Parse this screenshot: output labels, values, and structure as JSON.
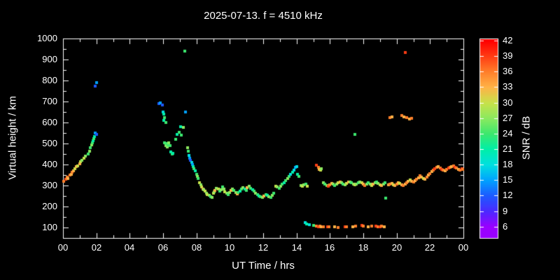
{
  "colors": {
    "background": "#000000",
    "foreground": "#ffffff"
  },
  "chart_data": {
    "type": "scatter",
    "title": "2025-07-13. f = 4510 kHz",
    "xlabel": "UT Time / hrs",
    "ylabel": "Virtual height / km",
    "xlim": [
      0,
      24
    ],
    "ylim": [
      50,
      1000
    ],
    "grid": false,
    "x_tick_hours": [
      0,
      2,
      4,
      6,
      8,
      10,
      12,
      14,
      16,
      18,
      20,
      22,
      24
    ],
    "x_ticks": [
      "00",
      "02",
      "04",
      "06",
      "08",
      "10",
      "12",
      "14",
      "16",
      "18",
      "20",
      "22",
      "00"
    ],
    "y_ticks": [
      100,
      200,
      300,
      400,
      500,
      600,
      700,
      800,
      900,
      1000
    ],
    "colorbar": {
      "label": "SNR / dB",
      "min": 6,
      "max": 42,
      "ticks": [
        6,
        9,
        12,
        15,
        18,
        21,
        24,
        27,
        30,
        33,
        36,
        39,
        42
      ],
      "color_stops": [
        [
          6,
          "#9A00FF"
        ],
        [
          9,
          "#4B29FF"
        ],
        [
          12,
          "#1E5AFF"
        ],
        [
          15,
          "#00A2FF"
        ],
        [
          18,
          "#00E0E0"
        ],
        [
          21,
          "#00EFA8"
        ],
        [
          24,
          "#3CE86E"
        ],
        [
          27,
          "#8BE95F"
        ],
        [
          30,
          "#C8E24A"
        ],
        [
          33,
          "#FFB347"
        ],
        [
          36,
          "#FF7F2A"
        ],
        [
          39,
          "#FF3C14"
        ],
        [
          42,
          "#FF0000"
        ]
      ]
    },
    "points": [
      [
        0.05,
        320,
        36
      ],
      [
        0.15,
        330,
        38
      ],
      [
        0.25,
        340,
        36
      ],
      [
        0.3,
        335,
        33
      ],
      [
        0.4,
        350,
        36
      ],
      [
        0.5,
        355,
        33
      ],
      [
        0.55,
        365,
        36
      ],
      [
        0.65,
        370,
        33
      ],
      [
        0.7,
        380,
        30
      ],
      [
        0.8,
        390,
        33
      ],
      [
        0.9,
        395,
        30
      ],
      [
        1.0,
        405,
        33
      ],
      [
        1.05,
        415,
        30
      ],
      [
        1.15,
        420,
        27
      ],
      [
        1.25,
        430,
        30
      ],
      [
        1.35,
        440,
        27
      ],
      [
        1.5,
        450,
        24
      ],
      [
        1.6,
        465,
        27
      ],
      [
        1.65,
        480,
        24
      ],
      [
        1.7,
        495,
        27
      ],
      [
        1.75,
        505,
        24
      ],
      [
        1.8,
        515,
        21
      ],
      [
        1.85,
        525,
        24
      ],
      [
        1.9,
        535,
        21
      ],
      [
        1.95,
        550,
        15
      ],
      [
        2.0,
        545,
        12
      ],
      [
        1.95,
        775,
        12
      ],
      [
        2.0,
        790,
        15
      ],
      [
        5.75,
        690,
        12
      ],
      [
        5.85,
        695,
        15
      ],
      [
        5.95,
        685,
        12
      ],
      [
        6.0,
        650,
        18
      ],
      [
        6.05,
        640,
        21
      ],
      [
        6.1,
        625,
        24
      ],
      [
        6.05,
        610,
        21
      ],
      [
        6.15,
        600,
        24
      ],
      [
        6.1,
        505,
        24
      ],
      [
        6.15,
        490,
        27
      ],
      [
        6.2,
        500,
        24
      ],
      [
        6.25,
        485,
        27
      ],
      [
        6.3,
        495,
        24
      ],
      [
        6.35,
        505,
        27
      ],
      [
        6.4,
        490,
        24
      ],
      [
        6.45,
        460,
        21
      ],
      [
        6.55,
        450,
        24
      ],
      [
        6.6,
        455,
        21
      ],
      [
        6.75,
        520,
        24
      ],
      [
        6.85,
        545,
        21
      ],
      [
        6.95,
        555,
        24
      ],
      [
        7.05,
        580,
        21
      ],
      [
        7.1,
        540,
        24
      ],
      [
        7.2,
        575,
        27
      ],
      [
        7.3,
        940,
        24
      ],
      [
        7.35,
        650,
        15
      ],
      [
        7.45,
        480,
        27
      ],
      [
        7.5,
        465,
        24
      ],
      [
        7.55,
        445,
        18
      ],
      [
        7.6,
        430,
        15
      ],
      [
        7.65,
        420,
        12
      ],
      [
        7.7,
        410,
        18
      ],
      [
        7.75,
        400,
        15
      ],
      [
        7.8,
        390,
        21
      ],
      [
        7.85,
        380,
        24
      ],
      [
        7.95,
        370,
        21
      ],
      [
        8.0,
        355,
        24
      ],
      [
        8.05,
        345,
        27
      ],
      [
        8.1,
        335,
        24
      ],
      [
        8.2,
        315,
        30
      ],
      [
        8.25,
        305,
        27
      ],
      [
        8.3,
        295,
        30
      ],
      [
        8.4,
        285,
        33
      ],
      [
        8.45,
        280,
        27
      ],
      [
        8.5,
        272,
        30
      ],
      [
        8.6,
        265,
        27
      ],
      [
        8.65,
        258,
        30
      ],
      [
        8.75,
        252,
        27
      ],
      [
        8.85,
        248,
        24
      ],
      [
        8.95,
        245,
        27
      ],
      [
        9.0,
        262,
        30
      ],
      [
        9.05,
        270,
        27
      ],
      [
        9.1,
        278,
        33
      ],
      [
        9.2,
        288,
        27
      ],
      [
        9.3,
        282,
        30
      ],
      [
        9.4,
        275,
        24
      ],
      [
        9.5,
        280,
        27
      ],
      [
        9.55,
        292,
        24
      ],
      [
        9.65,
        285,
        27
      ],
      [
        9.7,
        270,
        30
      ],
      [
        9.8,
        264,
        27
      ],
      [
        9.9,
        258,
        24
      ],
      [
        10.0,
        268,
        27
      ],
      [
        10.05,
        278,
        33
      ],
      [
        10.15,
        284,
        27
      ],
      [
        10.25,
        276,
        24
      ],
      [
        10.35,
        266,
        27
      ],
      [
        10.45,
        260,
        33
      ],
      [
        10.5,
        268,
        24
      ],
      [
        10.6,
        274,
        21
      ],
      [
        10.7,
        282,
        24
      ],
      [
        10.8,
        290,
        27
      ],
      [
        10.9,
        284,
        21
      ],
      [
        11.0,
        276,
        24
      ],
      [
        11.05,
        290,
        33
      ],
      [
        11.15,
        296,
        27
      ],
      [
        11.25,
        288,
        24
      ],
      [
        11.35,
        280,
        21
      ],
      [
        11.45,
        272,
        24
      ],
      [
        11.55,
        264,
        27
      ],
      [
        11.65,
        256,
        24
      ],
      [
        11.75,
        250,
        21
      ],
      [
        11.85,
        246,
        24
      ],
      [
        11.95,
        243,
        27
      ],
      [
        12.05,
        250,
        33
      ],
      [
        12.15,
        258,
        24
      ],
      [
        12.25,
        252,
        21
      ],
      [
        12.35,
        246,
        27
      ],
      [
        12.45,
        242,
        24
      ],
      [
        12.55,
        252,
        27
      ],
      [
        12.65,
        264,
        24
      ],
      [
        12.75,
        296,
        30
      ],
      [
        12.85,
        292,
        27
      ],
      [
        12.95,
        288,
        24
      ],
      [
        13.05,
        298,
        27
      ],
      [
        13.15,
        306,
        24
      ],
      [
        13.25,
        314,
        21
      ],
      [
        13.35,
        322,
        24
      ],
      [
        13.45,
        332,
        27
      ],
      [
        13.55,
        342,
        24
      ],
      [
        13.65,
        352,
        18
      ],
      [
        13.75,
        362,
        21
      ],
      [
        13.85,
        372,
        18
      ],
      [
        13.95,
        386,
        15
      ],
      [
        14.0,
        390,
        18
      ],
      [
        14.05,
        352,
        21
      ],
      [
        14.15,
        342,
        24
      ],
      [
        14.25,
        300,
        27
      ],
      [
        14.35,
        296,
        30
      ],
      [
        14.45,
        302,
        27
      ],
      [
        14.55,
        306,
        24
      ],
      [
        14.65,
        296,
        30
      ],
      [
        14.5,
        122,
        18
      ],
      [
        14.6,
        116,
        21
      ],
      [
        14.75,
        112,
        18
      ],
      [
        15.0,
        110,
        24
      ],
      [
        15.2,
        106,
        36
      ],
      [
        15.3,
        104,
        39
      ],
      [
        15.4,
        107,
        36
      ],
      [
        15.5,
        104,
        33
      ],
      [
        15.6,
        102,
        36
      ],
      [
        15.85,
        105,
        39
      ],
      [
        15.95,
        103,
        36
      ],
      [
        16.3,
        105,
        33
      ],
      [
        16.5,
        101,
        36
      ],
      [
        16.9,
        104,
        39
      ],
      [
        17.0,
        102,
        36
      ],
      [
        17.35,
        105,
        33
      ],
      [
        17.55,
        108,
        36
      ],
      [
        17.9,
        110,
        39
      ],
      [
        18.0,
        106,
        36
      ],
      [
        18.3,
        104,
        33
      ],
      [
        18.5,
        106,
        36
      ],
      [
        18.75,
        108,
        39
      ],
      [
        18.9,
        105,
        36
      ],
      [
        19.0,
        104,
        39
      ],
      [
        19.1,
        107,
        36
      ],
      [
        19.25,
        105,
        33
      ],
      [
        15.2,
        398,
        39
      ],
      [
        15.3,
        388,
        36
      ],
      [
        15.35,
        378,
        33
      ],
      [
        15.45,
        372,
        30
      ],
      [
        15.5,
        380,
        27
      ],
      [
        15.6,
        312,
        27
      ],
      [
        15.7,
        306,
        24
      ],
      [
        15.8,
        300,
        27
      ],
      [
        15.9,
        296,
        39
      ],
      [
        16.0,
        302,
        36
      ],
      [
        16.1,
        310,
        33
      ],
      [
        16.2,
        306,
        27
      ],
      [
        16.3,
        300,
        24
      ],
      [
        16.4,
        308,
        27
      ],
      [
        16.5,
        314,
        30
      ],
      [
        16.6,
        318,
        33
      ],
      [
        16.7,
        314,
        27
      ],
      [
        16.8,
        308,
        24
      ],
      [
        16.9,
        304,
        27
      ],
      [
        17.0,
        310,
        30
      ],
      [
        17.1,
        316,
        33
      ],
      [
        17.2,
        318,
        27
      ],
      [
        17.3,
        312,
        24
      ],
      [
        17.4,
        306,
        27
      ],
      [
        17.5,
        302,
        30
      ],
      [
        17.6,
        308,
        27
      ],
      [
        17.7,
        314,
        24
      ],
      [
        17.8,
        318,
        27
      ],
      [
        17.9,
        312,
        30
      ],
      [
        18.0,
        306,
        33
      ],
      [
        18.1,
        300,
        36
      ],
      [
        18.2,
        308,
        27
      ],
      [
        18.3,
        314,
        24
      ],
      [
        18.4,
        306,
        27
      ],
      [
        18.5,
        300,
        30
      ],
      [
        18.6,
        308,
        33
      ],
      [
        18.7,
        314,
        27
      ],
      [
        18.8,
        318,
        24
      ],
      [
        18.9,
        310,
        27
      ],
      [
        19.0,
        304,
        30
      ],
      [
        19.1,
        300,
        33
      ],
      [
        19.2,
        308,
        27
      ],
      [
        19.3,
        314,
        24
      ],
      [
        17.5,
        545,
        24
      ],
      [
        19.35,
        240,
        24
      ],
      [
        19.6,
        622,
        36
      ],
      [
        19.7,
        628,
        33
      ],
      [
        20.3,
        632,
        36
      ],
      [
        20.45,
        626,
        33
      ],
      [
        20.5,
        935,
        39
      ],
      [
        20.6,
        622,
        36
      ],
      [
        20.75,
        616,
        33
      ],
      [
        20.9,
        620,
        36
      ],
      [
        19.5,
        302,
        33
      ],
      [
        19.6,
        306,
        36
      ],
      [
        19.7,
        310,
        33
      ],
      [
        19.8,
        304,
        30
      ],
      [
        19.9,
        300,
        33
      ],
      [
        20.0,
        308,
        36
      ],
      [
        20.1,
        314,
        33
      ],
      [
        20.2,
        310,
        30
      ],
      [
        20.3,
        304,
        33
      ],
      [
        20.4,
        300,
        36
      ],
      [
        20.5,
        308,
        33
      ],
      [
        20.6,
        314,
        36
      ],
      [
        20.7,
        320,
        33
      ],
      [
        20.8,
        326,
        30
      ],
      [
        20.9,
        320,
        33
      ],
      [
        21.0,
        316,
        36
      ],
      [
        21.1,
        322,
        33
      ],
      [
        21.2,
        330,
        36
      ],
      [
        21.3,
        338,
        33
      ],
      [
        21.4,
        346,
        36
      ],
      [
        21.5,
        340,
        33
      ],
      [
        21.6,
        334,
        30
      ],
      [
        21.7,
        330,
        33
      ],
      [
        21.8,
        340,
        36
      ],
      [
        21.9,
        350,
        33
      ],
      [
        22.0,
        358,
        36
      ],
      [
        22.1,
        368,
        33
      ],
      [
        22.2,
        374,
        36
      ],
      [
        22.3,
        380,
        39
      ],
      [
        22.4,
        386,
        36
      ],
      [
        22.5,
        390,
        33
      ],
      [
        22.6,
        384,
        36
      ],
      [
        22.7,
        378,
        39
      ],
      [
        22.8,
        374,
        36
      ],
      [
        22.9,
        370,
        33
      ],
      [
        23.0,
        376,
        36
      ],
      [
        23.1,
        382,
        39
      ],
      [
        23.2,
        386,
        36
      ],
      [
        23.3,
        390,
        33
      ],
      [
        23.4,
        394,
        36
      ],
      [
        23.5,
        388,
        39
      ],
      [
        23.6,
        384,
        36
      ],
      [
        23.7,
        378,
        33
      ],
      [
        23.8,
        374,
        36
      ],
      [
        23.9,
        380,
        39
      ],
      [
        23.95,
        376,
        36
      ]
    ]
  }
}
